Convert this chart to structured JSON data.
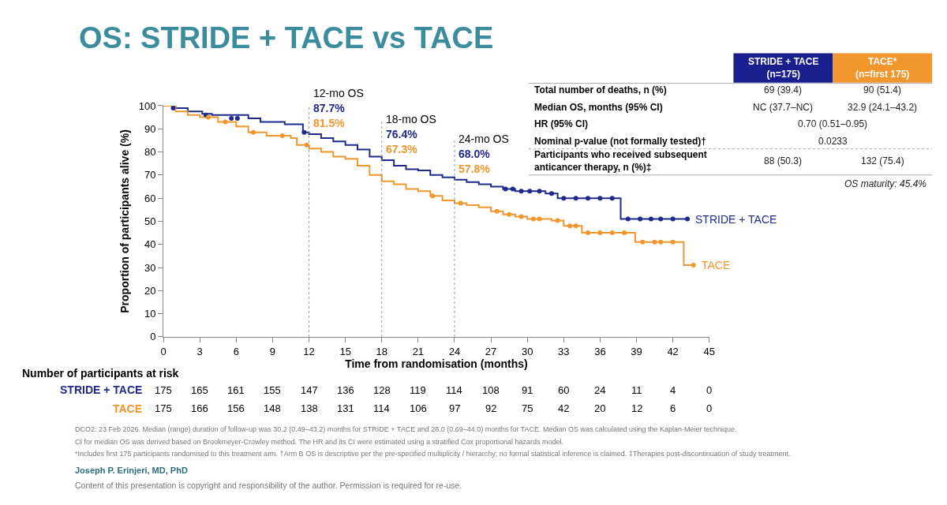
{
  "chart_data": [
    {
      "type": "step",
      "title": "OS: STRIDE + TACE vs TACE",
      "xlabel": "Time from randomisation (months)",
      "ylabel": "Proportion of participants alive (%)",
      "xlim": [
        0,
        45
      ],
      "xticks": [
        0,
        3,
        6,
        9,
        12,
        15,
        18,
        21,
        24,
        27,
        30,
        33,
        36,
        39,
        42,
        45
      ],
      "ylim": [
        0,
        100
      ],
      "yticks": [
        0,
        10,
        20,
        30,
        40,
        50,
        60,
        70,
        80,
        90,
        100
      ],
      "legend": false,
      "series": [
        {
          "name": "STRIDE + TACE",
          "color": "#1f2a8c",
          "x": [
            0,
            1,
            2,
            3.2,
            4,
            7,
            8,
            10,
            11.5,
            12,
            13,
            14,
            15,
            16,
            17,
            18,
            19,
            20,
            21,
            22,
            23,
            24,
            25,
            26,
            27,
            28,
            29,
            31.5,
            32.5,
            37.7,
            43.2
          ],
          "values": [
            100,
            99,
            97.5,
            96.5,
            96,
            94.5,
            93,
            92,
            88.5,
            87.7,
            86,
            84.5,
            83,
            81,
            78,
            76.4,
            74,
            72.5,
            72,
            70,
            69,
            68,
            67,
            66,
            65,
            64,
            63,
            62,
            60,
            51,
            51
          ]
        },
        {
          "name": "TACE",
          "color": "#f0962d",
          "x": [
            0,
            1,
            2,
            3,
            4.5,
            6,
            7,
            8.5,
            10.5,
            11,
            12,
            13,
            14,
            15,
            16,
            17,
            18,
            19,
            20,
            21,
            22,
            23,
            24,
            25,
            26,
            27,
            28,
            29,
            30,
            32,
            33,
            34.5,
            38.9,
            42.9,
            43.7
          ],
          "values": [
            100,
            97.5,
            96,
            95,
            93,
            91,
            88.5,
            87,
            86,
            83,
            81.5,
            80,
            78,
            77,
            74,
            70,
            67.3,
            66,
            64,
            63,
            61,
            59,
            57.8,
            57,
            56,
            54.3,
            53,
            52,
            51,
            50.3,
            48,
            45,
            41,
            31,
            31
          ]
        },
        {
          "type": "scatter",
          "color": "#1f2a8c",
          "marker": "circle",
          "x": [
            0.8,
            3.5,
            5.6,
            6.1,
            11.6,
            28.2,
            28.8,
            29.5,
            30.2,
            31,
            32,
            33,
            34,
            35,
            36,
            37,
            38.3,
            39.3,
            40.2,
            41,
            42,
            43.2
          ],
          "values": [
            99,
            96,
            94.5,
            94.5,
            88.5,
            64,
            64,
            63,
            63,
            63,
            62,
            60,
            60,
            60,
            60,
            60,
            51,
            51,
            51,
            51,
            51,
            51
          ]
        },
        {
          "type": "scatter",
          "color": "#f0962d",
          "marker": "circle",
          "x": [
            3.7,
            5.1,
            7.4,
            9.8,
            11.8,
            22.2,
            24.5,
            27.5,
            28.5,
            29.5,
            30.5,
            31,
            32.5,
            33.5,
            34,
            35,
            36,
            37,
            38,
            39.5,
            40.5,
            41,
            42,
            43.7
          ],
          "values": [
            95,
            93,
            88.5,
            87,
            83,
            61,
            57.8,
            54.3,
            53,
            52,
            51,
            51,
            50.3,
            48,
            48,
            45,
            45,
            45,
            45,
            41,
            41,
            41,
            41,
            31
          ]
        }
      ],
      "ref_lines": [
        {
          "axis": "x",
          "value": 12,
          "label": "12-mo OS",
          "color": "#999999",
          "line_style": "dotted"
        },
        {
          "axis": "x",
          "value": 18,
          "label": "18-mo OS",
          "color": "#999999",
          "line_style": "dotted"
        },
        {
          "axis": "x",
          "value": 24,
          "label": "24-mo OS",
          "color": "#999999",
          "line_style": "dotted"
        }
      ],
      "annotations": [
        {
          "text": "87.7%",
          "x": 12,
          "y": 87.7
        },
        {
          "text": "81.5%",
          "x": 12,
          "y": 81.5
        },
        {
          "text": "76.4%",
          "x": 18,
          "y": 76.4
        },
        {
          "text": "67.3%",
          "x": 18,
          "y": 67.3
        },
        {
          "text": "68.0%",
          "x": 24,
          "y": 68.0
        },
        {
          "text": "57.8%",
          "x": 24,
          "y": 57.8
        }
      ]
    },
    {
      "type": "other",
      "categories": [
        "STRIDE + TACE\n(n=175)",
        "TACE*\n(n=first 175)"
      ],
      "colors": [
        "#1a1f8f",
        "#f0962d"
      ],
      "y_categories": [
        "Total number of deaths, n (%)",
        "Median OS, months (95% CI)",
        "HR (95% CI)",
        "Nominal p-value (not formally tested)†",
        "Participants who received subsequent\nanticancer therapy, n (%)‡"
      ],
      "cell_labels": [
        [
          "69 (39.4)",
          "90 (51.4)"
        ],
        [
          "NC (37.7–NC)",
          "32.9 (24.1–43.2)"
        ],
        [
          "0.70 (0.51–0.95)",
          null
        ],
        [
          "0.0233",
          null
        ],
        [
          "88 (50.3)",
          "132 (75.4)"
        ]
      ],
      "annotations": [
        "OS maturity: 45.4%"
      ]
    },
    {
      "type": "other",
      "title": "Number of participants at risk",
      "y_categories": [
        "STRIDE + TACE",
        "TACE"
      ],
      "colors": [
        "#1f2a8c",
        "#f0962d"
      ],
      "cell_labels": [
        [
          "175",
          "165",
          "161",
          "155",
          "147",
          "136",
          "128",
          "119",
          "114",
          "108",
          "91",
          "60",
          "24",
          "11",
          "4",
          "0"
        ],
        [
          "175",
          "166",
          "156",
          "148",
          "138",
          "131",
          "114",
          "106",
          "97",
          "92",
          "75",
          "42",
          "20",
          "12",
          "6",
          "0"
        ]
      ],
      "annotations": [
        "DCO2: 23 Feb 2026. Median (range) duration of follow-up was 30.2 (0.49–43.2) months for STRIDE + TACE and 28.0 (0.69–44.0) months for TACE. Median OS was calculated using the Kaplan-Meier technique.",
        "CI for median OS was derived based on Brookmeyer-Crowley method. The HR and its CI were estimated using a stratified Cox proportional hazards model.",
        "*Includes first 175 participants randomised to this treatment arm. †Arm B OS is descriptive per the pre-specified multiplicity / hierarchy; no formal statistical inference is claimed. ‡Therapies post-discontinuation of study treatment.",
        "Joseph P. Erinjeri, MD, PhD",
        "Content of this presentation is copyright and responsibility of the author. Permission is required for re-use."
      ]
    }
  ]
}
